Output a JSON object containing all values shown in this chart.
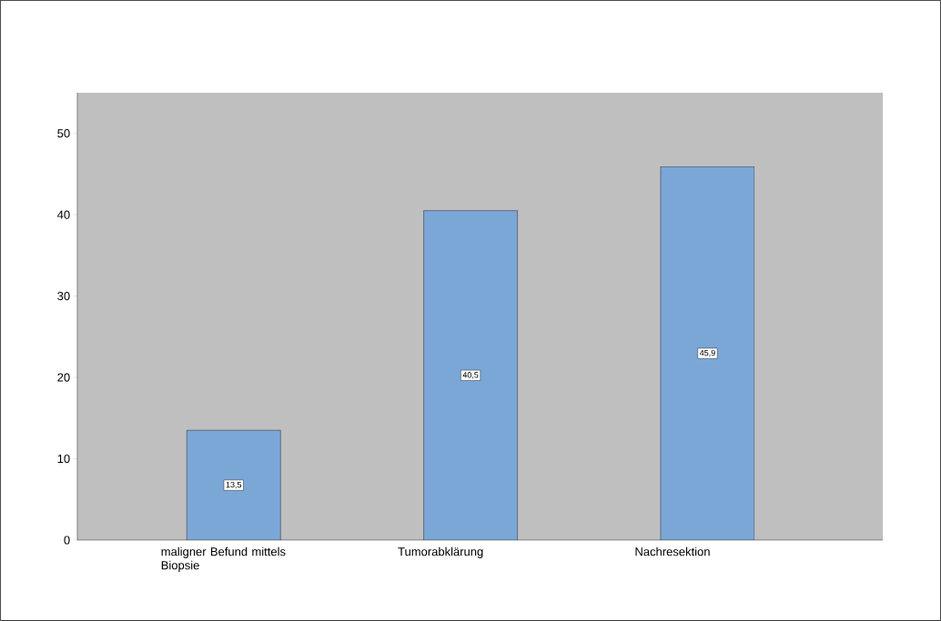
{
  "chart_data": {
    "type": "bar",
    "categories": [
      "maligner Befund mittels Biopsie",
      "Tumorabklärung",
      "Nachresektion"
    ],
    "values": [
      13.5,
      40.5,
      45.9
    ],
    "value_labels": [
      "13,5",
      "40,5",
      "45,9"
    ],
    "color": "#7ba7d7",
    "ylim": [
      0,
      55
    ],
    "yticks": [
      0,
      10,
      20,
      30,
      40,
      50
    ],
    "grid": false
  }
}
